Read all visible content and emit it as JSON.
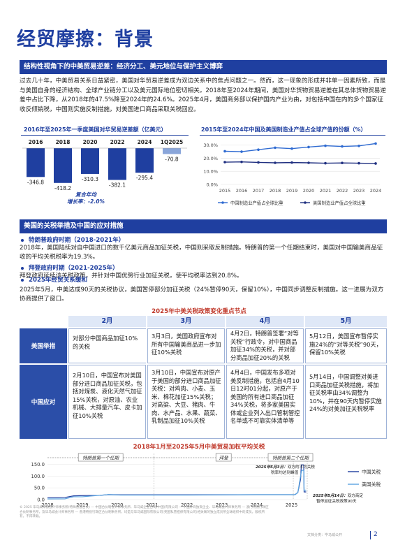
{
  "page_title": "经贸摩擦：背景",
  "section1": {
    "heading": "结构性视角下的中美贸易逆差：经济分工、美元地位与保护主义博弈",
    "paragraph": "过去几十年，中美贸易关系日益紧密，美国对华贸易逆差成为双边关系中的焦点问题之一。然而，这一现象的形成并非单一因素所致，而是与美国自身的经济结构、全球产业链分工以及美元国际地位密切相关。2018年至2024年期间，美国对华货物贸易逆差在其总体货物贸易逆差中占比下降，从2018年的47.5%降至2024年的24.6%。2025年4月，美国商务部以保护国内产业为由，对包括中国在内的多个国家征收反倾销税，中国则实施反制措施，对美国进口商品采取关税回应。"
  },
  "chart_left": {
    "title": "2016年至2025年一季度美国对华贸易逆差额（亿美元）",
    "annotation_line1": "复合年均",
    "annotation_line2": "增长率：-2.0%"
  },
  "chart_right": {
    "title": "2015年至2024年中国及美国制造业产值占全球产值的份额（%）"
  },
  "chart_data": [
    {
      "type": "bar",
      "title": "2016年至2025年一季度美国对华贸易逆差额（亿美元）",
      "categories": [
        "2016",
        "2018",
        "2020",
        "2022",
        "2024",
        "1Q2025"
      ],
      "values": [
        -346.8,
        -418.2,
        -310.3,
        -382.1,
        -295.4,
        -70.8
      ],
      "color": "#1f3fa0",
      "highlight_color": "#8aa6da"
    },
    {
      "type": "line",
      "title": "2015年至2024年中国及美国制造业产值占全球产值的份额（%）",
      "x": [
        "2015",
        "2016",
        "2017",
        "2018",
        "2019",
        "2020",
        "2021",
        "2022",
        "2023",
        "2024"
      ],
      "yticks": [
        "0.0%",
        "10.0%",
        "20.0%",
        "30.0%"
      ],
      "ylim": [
        0,
        33
      ],
      "series": [
        {
          "name": "中国制造业产值占全球比重",
          "values": [
            25.3,
            25.0,
            26.5,
            28.0,
            27.3,
            28.5,
            29.5,
            29.0,
            29.4,
            31.2
          ],
          "color": "#2e6ad1"
        },
        {
          "name": "美国制造业产值占全球比重",
          "values": [
            17.0,
            17.2,
            16.8,
            16.5,
            16.7,
            16.5,
            16.2,
            16.4,
            16.2,
            16.0
          ],
          "color": "#1f2f80"
        }
      ],
      "legend": [
        "中国制造业产值占全球比重",
        "美国制造业产值占全球比重"
      ]
    },
    {
      "type": "line",
      "title": "2018年1月至2025年5月中美贸易加权平均关税",
      "x_ticks": [
        "2018",
        "2019",
        "2020",
        "2021",
        "2022",
        "2023",
        "2024",
        "2025"
      ],
      "yticks": [
        "0.0",
        "50.0",
        "100.0",
        "150.0"
      ],
      "ylim": [
        0,
        160
      ],
      "series": [
        {
          "name": "中国关税",
          "color": "#1f3fa0",
          "points": [
            [
              2018.0,
              8
            ],
            [
              2018.5,
              9
            ],
            [
              2018.75,
              16
            ],
            [
              2019.0,
              17
            ],
            [
              2019.5,
              18
            ],
            [
              2019.75,
              21
            ],
            [
              2020.1,
              20.5
            ],
            [
              2022.0,
              20.5
            ],
            [
              2024.0,
              21
            ],
            [
              2025.1,
              21
            ],
            [
              2025.18,
              30
            ],
            [
              2025.26,
              86
            ],
            [
              2025.28,
              147
            ],
            [
              2025.35,
              147
            ],
            [
              2025.36,
              32.6
            ],
            [
              2025.42,
              32.6
            ]
          ]
        },
        {
          "name": "美国关税",
          "color": "#5aa3e0",
          "points": [
            [
              2018.0,
              3
            ],
            [
              2018.5,
              3.1
            ],
            [
              2018.75,
              12
            ],
            [
              2019.0,
              12
            ],
            [
              2019.4,
              17
            ],
            [
              2019.75,
              21
            ],
            [
              2020.1,
              19.3
            ],
            [
              2022.0,
              19.3
            ],
            [
              2024.0,
              20.8
            ],
            [
              2025.1,
              20.8
            ],
            [
              2025.18,
              30
            ],
            [
              2025.26,
              100
            ],
            [
              2025.29,
              124
            ],
            [
              2025.35,
              124
            ],
            [
              2025.36,
              40
            ],
            [
              2025.42,
              40
            ]
          ]
        }
      ],
      "legend": [
        "中国关税",
        "美国关税"
      ],
      "periods": [
        "特朗普第一个任期",
        "拜登",
        "特朗普第二个任期"
      ],
      "annotation1_bold": "2025年5月3日：",
      "annotation1_rest": "双方的平均关税税率均达到峰值",
      "annotation2_bold": "2025年5月14日：",
      "annotation2_rest": "双方商定暂停加征关税政策90天"
    }
  ],
  "section2": {
    "heading": "美国的关税举措及中国的应对措施",
    "items": [
      {
        "head": "特朗普政府时期（2018-2021年）",
        "text": "2018年，美国陆续对自中国进口的数千亿美元商品加征关税，中国则采取反制措施。特朗普的第一个任期结束时，美国对中国输美商品征收的平均关税税率为19.3%。"
      },
      {
        "head": "拜登政府时期（2021-2025年）",
        "text": "拜登政府延续该关税政策，并针对中国优势行业加征关税，使平均税率达到20.8%。"
      },
      {
        "head": "2025年经贸关系缓和",
        "text": "2025年5月，中美达成90天的关税协议，美国暂停部分加征关税（24%暂停90天，保留10%），中国同步调整反制措施。这一进展为双方协商提供了窗口。"
      }
    ]
  },
  "table": {
    "title": "2025年中美关税政策变化重点节点",
    "months": [
      "2月",
      "3月",
      "4月",
      "5月"
    ],
    "row_labels": [
      "美国举措",
      "中国应对"
    ],
    "us": [
      "对部分中国商品加征10%的关税",
      "3月3日，美国政府宣布对所有中国输美商品进一步加征10%关税",
      "4月2日，特朗普签署“对等关税”行政令，对中国商品加征34%的关税，并对部分商品加征20%的关税",
      "5月12日，美国宣布暂停实施24%的“对等关税”90天，保留10%关税"
    ],
    "cn": [
      "2月10日，中国宣布对美国部分进口商品加征关税，包括对煤炭、液化天然气加征15%关税，对原油、农业机械、大排量汽车、皮卡加征10%关税",
      "3月10日，中国宣布对原产于美国的部分进口商品加征关税：对鸡肉、小麦、玉米、棉花加征15%关税；对高粱、大豆、猪肉、牛肉、水产品、水果、蔬菜、乳制品加征10%关税",
      "4月4日，中国发布多项对美反制措施，包括自4月10日12时01分起，对原产于美国的所有进口商品加征34%关税，将多家美国实体或企业列入出口管制管控名单或不可靠实体清单等",
      "5月14日，中国调整对美进口商品加征关税措施，将加征关税率由34%调整为10%，并在90天内暂停实施24%的对美加征关税税率"
    ]
  },
  "chart3_title": "2018年1月至2025年5月中美贸易加权平均关税",
  "footnote": "© 2025 毕马威华振会计师事务所(特殊普通合伙) — 中国合伙制会计师事务所、毕马威企业咨询(中国)有限公司 — 中国外商独资企业、毕马威会计师事务所 — 澳门特别行政区合伙制事务所，及毕马威会计师事务所 — 香港特别行政区合伙制事务所，均是与毕马威国际有限公司(英国私营担保有限公司)相关联的独立成员所全球组织中的成员。版权所有，不得转载。",
  "source_label": "文档分类：毕马威公开",
  "page_number": "2"
}
